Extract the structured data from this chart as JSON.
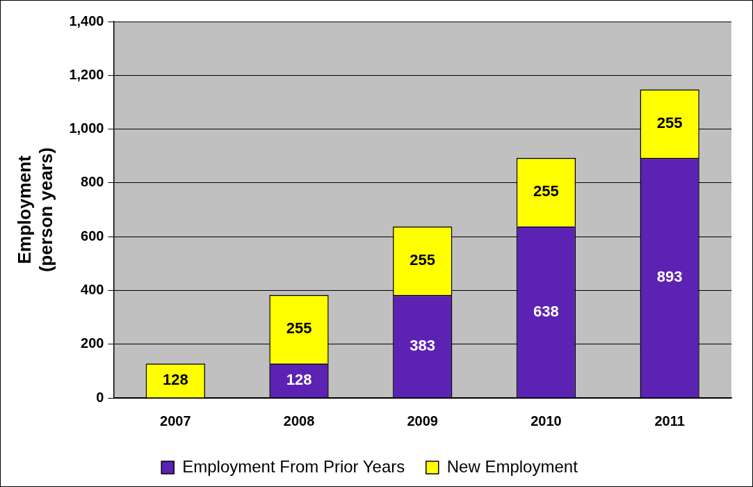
{
  "chart_data": {
    "type": "bar",
    "stacked": true,
    "categories": [
      "2007",
      "2008",
      "2009",
      "2010",
      "2011"
    ],
    "series": [
      {
        "name": "Employment From Prior Years",
        "color": "#5b22b3",
        "values": [
          null,
          128,
          383,
          638,
          893
        ]
      },
      {
        "name": "New Employment",
        "color": "#ffff00",
        "values": [
          128,
          255,
          255,
          255,
          255
        ]
      }
    ],
    "ylabel": "Employment\n(person years)",
    "ylim": [
      0,
      1400
    ],
    "yticks": [
      {
        "value": 0,
        "label": "0"
      },
      {
        "value": 200,
        "label": "200"
      },
      {
        "value": 400,
        "label": "400"
      },
      {
        "value": 600,
        "label": "600"
      },
      {
        "value": 800,
        "label": "800"
      },
      {
        "value": 1000,
        "label": "1,000"
      },
      {
        "value": 1200,
        "label": "1,200"
      },
      {
        "value": 1400,
        "label": "1,400"
      }
    ],
    "grid": "y",
    "legend": "bottom",
    "data_labels": true
  }
}
